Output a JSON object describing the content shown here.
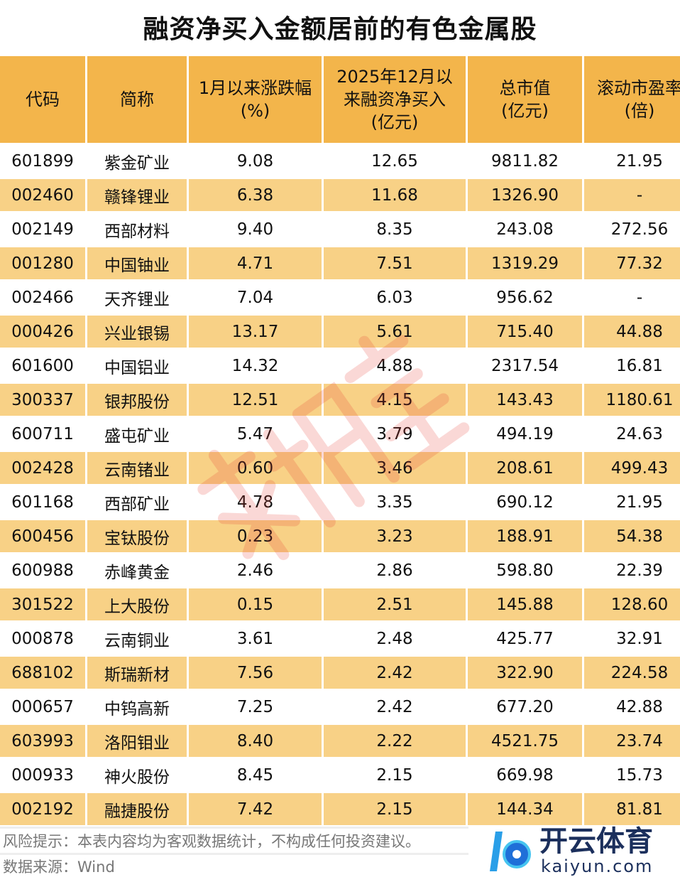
{
  "title": "融资净买入金额居前的有色金属股",
  "headers": [
    "代码",
    "简称",
    "1月以来涨跌幅\n(%)",
    "2025年12月以\n来融资净买入\n(亿元)",
    "总市值\n(亿元)",
    "滚动市盈率\n(倍)"
  ],
  "rows": [
    [
      "601899",
      "紫金矿业",
      "9.08",
      "12.65",
      "9811.82",
      "21.95"
    ],
    [
      "002460",
      "赣锋锂业",
      "6.38",
      "11.68",
      "1326.90",
      "-"
    ],
    [
      "002149",
      "西部材料",
      "9.40",
      "8.35",
      "243.08",
      "272.56"
    ],
    [
      "001280",
      "中国铀业",
      "4.71",
      "7.51",
      "1319.29",
      "77.32"
    ],
    [
      "002466",
      "天齐锂业",
      "7.04",
      "6.03",
      "956.62",
      "-"
    ],
    [
      "000426",
      "兴业银锡",
      "13.17",
      "5.61",
      "715.40",
      "44.88"
    ],
    [
      "601600",
      "中国铝业",
      "14.32",
      "4.88",
      "2317.54",
      "16.81"
    ],
    [
      "300337",
      "银邦股份",
      "12.51",
      "4.15",
      "143.43",
      "1180.61"
    ],
    [
      "600711",
      "盛屯矿业",
      "5.47",
      "3.79",
      "494.19",
      "24.63"
    ],
    [
      "002428",
      "云南锗业",
      "0.60",
      "3.46",
      "208.61",
      "499.43"
    ],
    [
      "601168",
      "西部矿业",
      "4.78",
      "3.35",
      "690.12",
      "21.95"
    ],
    [
      "600456",
      "宝钛股份",
      "0.23",
      "3.23",
      "188.91",
      "54.38"
    ],
    [
      "600988",
      "赤峰黄金",
      "2.46",
      "2.86",
      "598.80",
      "22.39"
    ],
    [
      "301522",
      "上大股份",
      "0.15",
      "2.51",
      "145.88",
      "128.60"
    ],
    [
      "000878",
      "云南铜业",
      "3.61",
      "2.48",
      "425.77",
      "32.91"
    ],
    [
      "688102",
      "斯瑞新材",
      "7.56",
      "2.42",
      "322.90",
      "224.58"
    ],
    [
      "000657",
      "中钨高新",
      "7.25",
      "2.42",
      "677.20",
      "42.88"
    ],
    [
      "603993",
      "洛阳钼业",
      "8.40",
      "2.22",
      "4521.75",
      "23.74"
    ],
    [
      "000933",
      "神火股份",
      "8.45",
      "2.15",
      "669.98",
      "15.73"
    ],
    [
      "002192",
      "融捷股份",
      "7.42",
      "2.15",
      "144.34",
      "81.81"
    ]
  ],
  "footer": {
    "risk": "风险提示：本表内容均为客观数据统计，不构成任何投资建议。",
    "source": "数据来源：Wind"
  },
  "watermark": "数据宝",
  "logo": {
    "cn": "开云体育",
    "en": "kaiyun.com"
  },
  "colors": {
    "header": "#F3B54B",
    "stripe": "#F8D186"
  }
}
